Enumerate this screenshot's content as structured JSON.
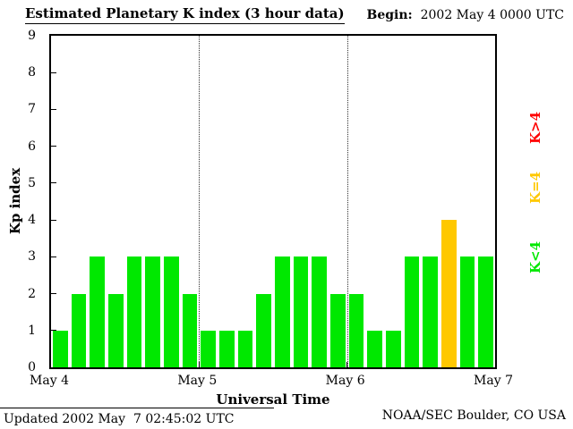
{
  "header": {
    "begin_label": "Begin:",
    "begin_value": "2002 May 4 0000 UTC"
  },
  "footer": {
    "updated": "Updated 2002 May  7 02:45:02 UTC",
    "source": "NOAA/SEC Boulder, CO USA"
  },
  "chart_data": {
    "type": "bar",
    "title": "Estimated Planetary K index (3 hour data)",
    "xlabel": "Universal Time",
    "ylabel": "Kp index",
    "ylim": [
      0,
      9
    ],
    "y_ticks": [
      0,
      1,
      2,
      3,
      4,
      5,
      6,
      7,
      8,
      9
    ],
    "x_tick_labels": [
      "May 4",
      "May 5",
      "May 6",
      "May 7"
    ],
    "bar_interval_hours": 3,
    "values": [
      1,
      2,
      3,
      2,
      3,
      3,
      3,
      2,
      1,
      1,
      1,
      2,
      3,
      3,
      3,
      2,
      2,
      1,
      1,
      3,
      3,
      4,
      3,
      3
    ],
    "day_divider_positions": [
      1,
      2
    ],
    "colors": {
      "k_lt_4": "#00e800",
      "k_eq_4": "#ffc800",
      "k_gt_4": "#ff0000",
      "grid": "#333333"
    },
    "legend": [
      {
        "label": "K>4",
        "color_key": "k_gt_4"
      },
      {
        "label": "K=4",
        "color_key": "k_eq_4"
      },
      {
        "label": "K<4",
        "color_key": "k_lt_4"
      }
    ],
    "legend_position": "right"
  }
}
